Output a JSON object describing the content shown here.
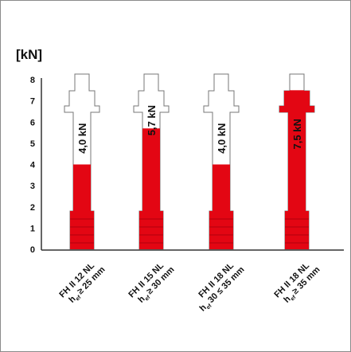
{
  "chart_data": {
    "type": "anchor-bar",
    "y_label": "[kN]",
    "categories": [
      "FH II 12 NL",
      "FH II 15 NL",
      "FH II 18 NL",
      "FH II 18 NL"
    ],
    "depth_symbol": "h",
    "depth_subscript": "ef",
    "depth_labels": [
      "≥ 25 mm",
      "≥ 30 mm",
      "30 ≤ 35 mm",
      "≥ 35 mm"
    ],
    "values": [
      4.0,
      5.7,
      4.0,
      7.5
    ],
    "value_labels": [
      "4,0 kN",
      "5,7 kN",
      "4,0 kN",
      "7,5 kN"
    ],
    "color": "#e30613",
    "ylim": [
      0,
      8
    ],
    "yticks": [
      0,
      1,
      2,
      3,
      4,
      5,
      6,
      7,
      8
    ],
    "grid": false
  }
}
